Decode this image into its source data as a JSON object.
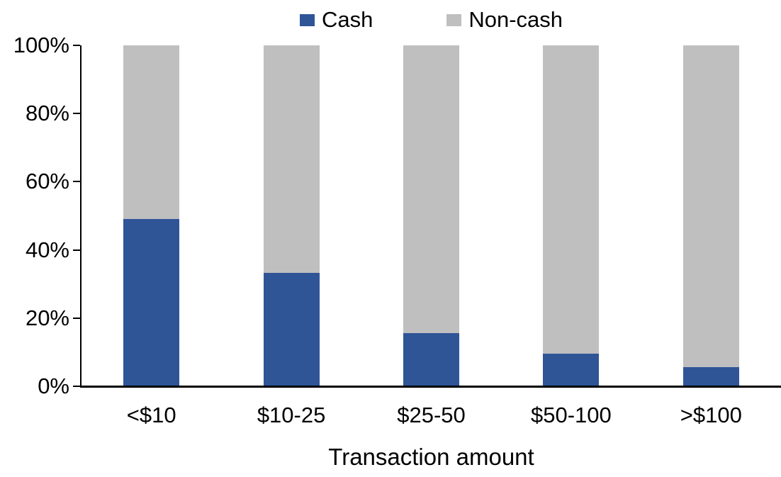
{
  "chart_data": {
    "type": "bar",
    "variant": "stacked-100-percent",
    "title": "",
    "xlabel": "Transaction amount",
    "ylabel": "",
    "categories": [
      "<$10",
      "$10-25",
      "$25-50",
      "$50-100",
      ">$100"
    ],
    "series": [
      {
        "name": "Cash",
        "color": "#2F5597",
        "values": [
          49,
          33.3,
          15.6,
          9.6,
          5.6
        ]
      },
      {
        "name": "Non-cash",
        "color": "#BFBFBF",
        "values": [
          51,
          66.7,
          84.4,
          90.4,
          94.4
        ]
      }
    ],
    "y_axis": {
      "min": 0,
      "max": 100,
      "tick_step": 20,
      "tick_labels": [
        "0%",
        "20%",
        "40%",
        "60%",
        "80%",
        "100%"
      ]
    },
    "legend_position": "top",
    "grid": false,
    "axis_color": "#000000",
    "text_color": "#000000",
    "background_color": "#FFFFFF"
  }
}
